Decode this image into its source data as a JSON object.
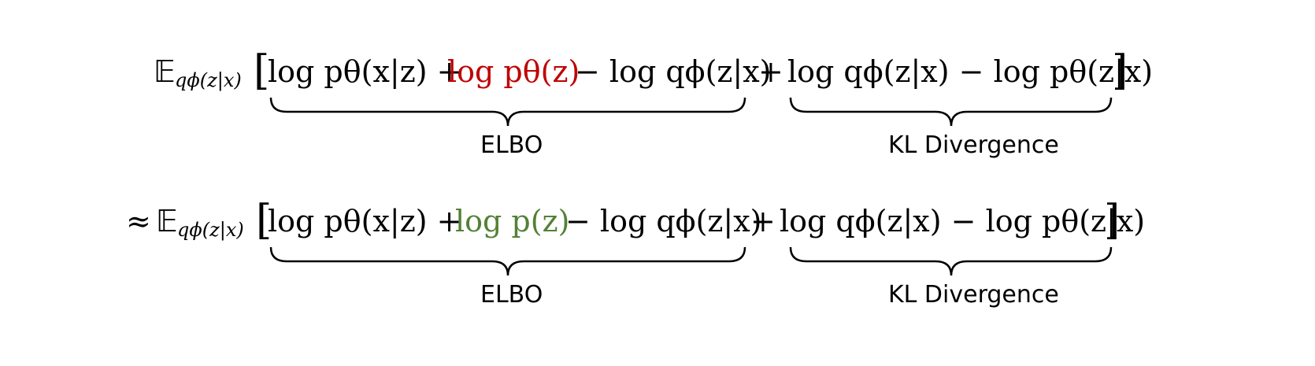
{
  "equations": [
    {
      "prefix": "",
      "expectation": "𝔼",
      "expectation_sub": "qϕ(z|x)",
      "open_bracket": "[",
      "close_bracket": "]",
      "term1": "log pθ(x|z) +",
      "term2_highlight": "log pθ(z)",
      "term2_color": "#c00000",
      "term3": "− log qϕ(z|x)",
      "plus": "+",
      "term4": "log qϕ(z|x) − log pθ(z|x)",
      "label_left": "ELBO",
      "label_right": "KL Divergence"
    },
    {
      "prefix": "≈",
      "expectation": "𝔼",
      "expectation_sub": "qϕ(z|x)",
      "open_bracket": "[",
      "close_bracket": "]",
      "term1": "log pθ(x|z) +",
      "term2_highlight": "log p(z)",
      "term2_color": "#538135",
      "term3": "− log qϕ(z|x)",
      "plus": "+",
      "term4": "log qϕ(z|x) − log pθ(z|x)",
      "label_left": "ELBO",
      "label_right": "KL Divergence"
    }
  ]
}
